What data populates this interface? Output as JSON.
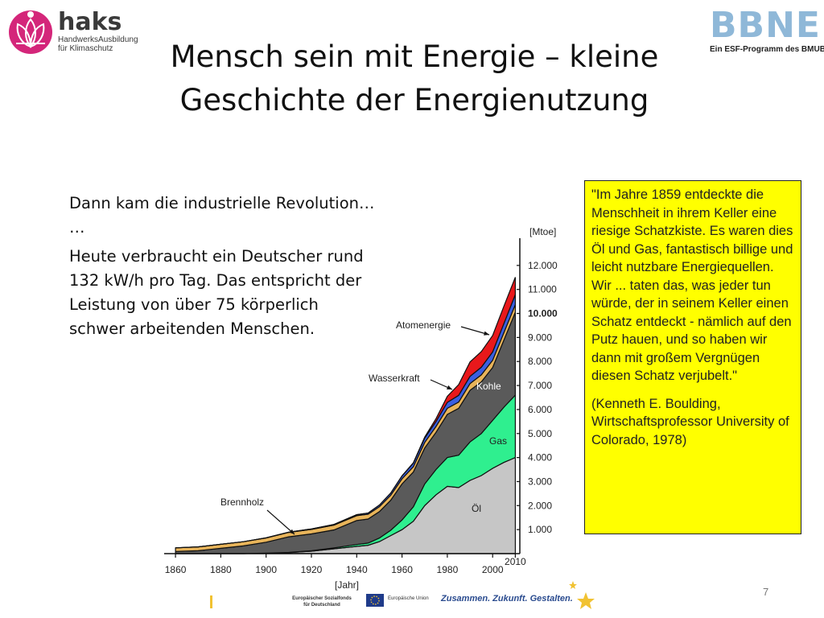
{
  "header": {
    "haks_logo_word": "haks",
    "haks_logo_subtitle_1": "HandwerksAusbildung",
    "haks_logo_subtitle_2": "für Klimaschutz",
    "bbne_logo_word": "BBNE",
    "bbne_logo_subtitle": "Ein ESF-Programm des BMUB",
    "title_line1": "Mensch sein mit Energie – kleine",
    "title_line2": "Geschichte der Energienutzung"
  },
  "body": {
    "line1": "Dann kam die industrielle Revolution…",
    "line2": "…",
    "paragraph": "Heute verbraucht ein Deutscher rund\n132 kW/h pro Tag. Das entspricht der\nLeistung von über 75 körperlich\nschwer arbeitenden Menschen."
  },
  "quote": {
    "text": "\"Im Jahre 1859 entdeckte die Menschheit in ihrem Keller eine riesige Schatzkiste. Es waren dies Öl und Gas, fantastisch billige und leicht nutzbare Energiequellen. Wir ... taten das, was jeder tun würde, der in seinem Keller einen Schatz entdeckt - nämlich auf den Putz hauen, und so haben wir dann mit großem Vergnügen diesen Schatz verjubelt.\"",
    "attribution": "(Kenneth E. Boulding, Wirtschaftsprofessor University of Colorado, 1978)"
  },
  "footer": {
    "page_number": "7",
    "esf_text": "Europäischer Sozialfonds für Deutschland",
    "eu_text": "Europäische Union",
    "slogan": "Zusammen. Zukunft. Gestalten."
  },
  "chart_data": {
    "type": "area",
    "stacked": true,
    "title": "",
    "xlabel": "[Jahr]",
    "ylabel": "[Mtoe]",
    "xlim": [
      1855,
      2012
    ],
    "ylim": [
      0,
      13000
    ],
    "x_ticks": [
      1860,
      1880,
      1900,
      1920,
      1940,
      1960,
      1980,
      2000,
      2010
    ],
    "x_tick_labels": [
      "1860",
      "1880",
      "1900",
      "1920",
      "1940",
      "1960",
      "1980",
      "2000",
      "2010"
    ],
    "y_ticks": [
      1000,
      2000,
      3000,
      4000,
      5000,
      6000,
      7000,
      8000,
      9000,
      10000,
      11000,
      12000
    ],
    "y_tick_labels": [
      "1.000",
      "2.000",
      "3.000",
      "4.000",
      "5.000",
      "6.000",
      "7.000",
      "8.000",
      "9.000",
      "10.000",
      "11.000",
      "12.000"
    ],
    "bold_y_tick": 10000,
    "x": [
      1860,
      1870,
      1880,
      1890,
      1900,
      1910,
      1920,
      1930,
      1940,
      1945,
      1950,
      1955,
      1960,
      1965,
      1970,
      1975,
      1980,
      1985,
      1990,
      1995,
      2000,
      2005,
      2010
    ],
    "series": [
      {
        "name": "Öl",
        "color": "#c6c6c6",
        "values": [
          0,
          0,
          0,
          0,
          20,
          40,
          100,
          200,
          300,
          350,
          500,
          750,
          1000,
          1350,
          2000,
          2450,
          2800,
          2750,
          3050,
          3250,
          3550,
          3800,
          4000
        ]
      },
      {
        "name": "Gas",
        "color": "#2fef8f",
        "values": [
          0,
          0,
          0,
          0,
          5,
          10,
          20,
          40,
          80,
          90,
          150,
          220,
          400,
          600,
          900,
          1050,
          1200,
          1350,
          1600,
          1750,
          2000,
          2300,
          2600
        ]
      },
      {
        "name": "Kohle",
        "color": "#5a5a5a",
        "values": [
          90,
          120,
          220,
          320,
          450,
          650,
          700,
          750,
          1000,
          1000,
          1100,
          1250,
          1500,
          1450,
          1500,
          1550,
          1800,
          1950,
          2150,
          2150,
          2200,
          2800,
          3450
        ]
      },
      {
        "name": "Brennholz",
        "color": "#e8b45a",
        "values": [
          150,
          160,
          170,
          175,
          180,
          185,
          190,
          195,
          200,
          200,
          205,
          210,
          215,
          220,
          230,
          240,
          250,
          260,
          280,
          290,
          300,
          310,
          320
        ]
      },
      {
        "name": "Wasserkraft",
        "color": "#3a5fe0",
        "values": [
          0,
          0,
          0,
          0,
          5,
          10,
          20,
          30,
          40,
          50,
          70,
          90,
          120,
          150,
          180,
          210,
          250,
          280,
          300,
          320,
          350,
          380,
          420
        ]
      },
      {
        "name": "Atomenergie",
        "color": "#e8181b",
        "values": [
          0,
          0,
          0,
          0,
          0,
          0,
          0,
          0,
          0,
          0,
          0,
          0,
          5,
          15,
          40,
          120,
          250,
          450,
          600,
          650,
          680,
          720,
          720
        ]
      }
    ],
    "annotations": [
      {
        "text": "Brennholz"
      },
      {
        "text": "Wasserkraft"
      },
      {
        "text": "Atomenergie"
      },
      {
        "text": "Kohle"
      },
      {
        "text": "Gas"
      },
      {
        "text": "Öl"
      }
    ]
  }
}
